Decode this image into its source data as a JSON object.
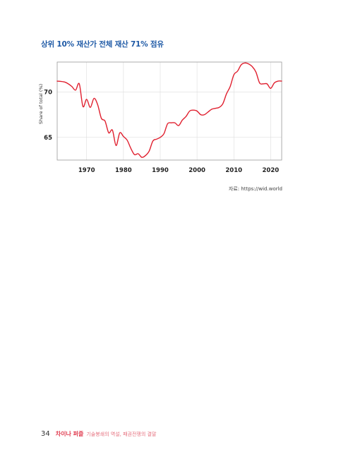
{
  "chart_data": {
    "type": "line",
    "title": "상위 10% 재산가 전체 재산 71% 점유",
    "ylabel": "Share of total (%)",
    "xlabel": "",
    "xlim": [
      1962,
      2023
    ],
    "ylim": [
      62.5,
      73.3
    ],
    "x_ticks": [
      1970,
      1980,
      1990,
      2000,
      2010,
      2020
    ],
    "y_ticks": [
      65,
      70
    ],
    "grid": true,
    "color": "#e0202f",
    "x": [
      1962,
      1964,
      1965,
      1966,
      1967,
      1968,
      1969,
      1970,
      1971,
      1972,
      1973,
      1974,
      1975,
      1976,
      1977,
      1978,
      1979,
      1980,
      1981,
      1982,
      1983,
      1984,
      1985,
      1986,
      1987,
      1988,
      1989,
      1990,
      1991,
      1992,
      1993,
      1994,
      1995,
      1996,
      1997,
      1998,
      1999,
      2000,
      2001,
      2002,
      2003,
      2004,
      2005,
      2006,
      2007,
      2008,
      2009,
      2010,
      2011,
      2012,
      2013,
      2014,
      2015,
      2016,
      2017,
      2018,
      2019,
      2020,
      2021,
      2022,
      2023
    ],
    "values": [
      71.2,
      71.1,
      70.9,
      70.6,
      70.2,
      70.9,
      68.4,
      69.2,
      68.3,
      69.3,
      68.6,
      67.1,
      66.8,
      65.5,
      65.8,
      64.1,
      65.5,
      65.1,
      64.7,
      63.8,
      63.1,
      63.2,
      62.8,
      63.0,
      63.5,
      64.6,
      64.8,
      65.0,
      65.4,
      66.5,
      66.6,
      66.6,
      66.3,
      66.9,
      67.3,
      67.9,
      68.0,
      67.9,
      67.5,
      67.5,
      67.8,
      68.1,
      68.2,
      68.3,
      68.7,
      69.8,
      70.6,
      71.9,
      72.3,
      73.0,
      73.2,
      73.1,
      72.8,
      72.2,
      71.0,
      70.9,
      70.9,
      70.4,
      71.0,
      71.2,
      71.2
    ]
  },
  "source": "자료: https://wid.world",
  "footer": {
    "page_number": "34",
    "book_title": "차이나 퍼즐",
    "book_subtitle": "기술봉쇄의 역설, 패권전쟁의 결말"
  }
}
